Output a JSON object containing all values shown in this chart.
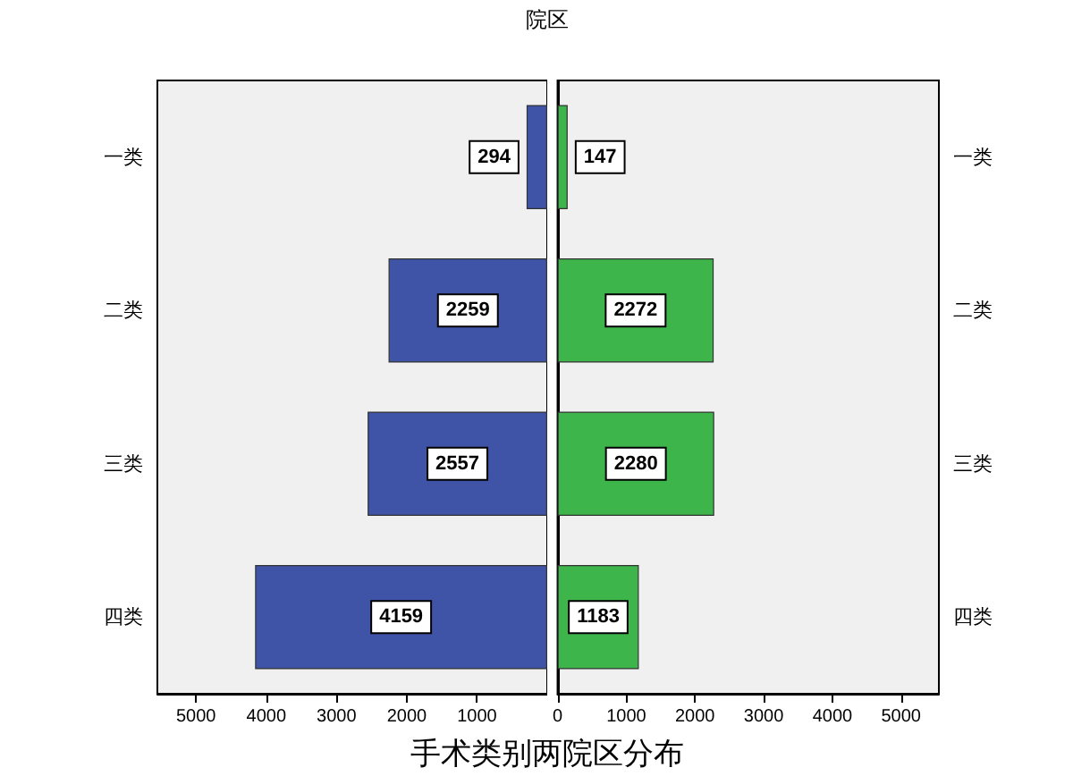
{
  "chart_data": [
    {
      "type": "bar",
      "orientation": "horizontal",
      "title": "院区",
      "xlabel": "手术类别两院区分布",
      "categories": [
        "一类",
        "二类",
        "三类",
        "四类"
      ],
      "series": [
        {
          "color": "#3f54a6",
          "values": [
            294,
            2259,
            2557,
            4159
          ]
        }
      ],
      "data_labels": true,
      "xlim": [
        5550,
        0
      ],
      "xticks": [
        5000,
        4000,
        3000,
        2000,
        1000
      ],
      "grid": false
    },
    {
      "type": "bar",
      "orientation": "horizontal",
      "categories": [
        "一类",
        "二类",
        "三类",
        "四类"
      ],
      "series": [
        {
          "color": "#3db54a",
          "values": [
            147,
            2272,
            2280,
            1183
          ]
        }
      ],
      "data_labels": true,
      "xlim": [
        0,
        5550
      ],
      "xticks": [
        0,
        1000,
        2000,
        3000,
        4000,
        5000
      ],
      "grid": false
    }
  ]
}
